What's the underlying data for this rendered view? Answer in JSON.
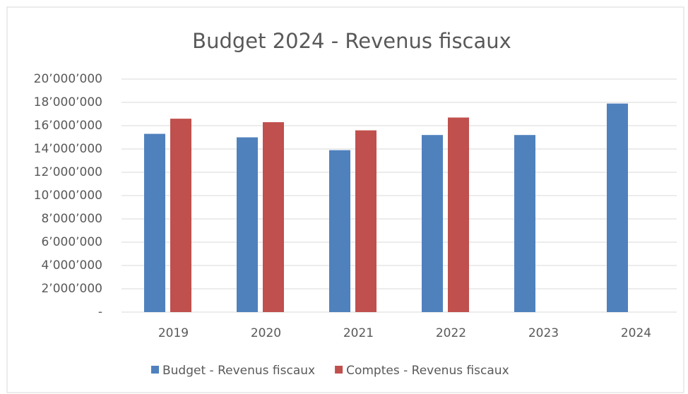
{
  "chart_data": {
    "type": "bar",
    "title": "Budget 2024 - Revenus fiscaux",
    "categories": [
      "2019",
      "2020",
      "2021",
      "2022",
      "2023",
      "2024"
    ],
    "series": [
      {
        "name": "Budget - Revenus fiscaux",
        "color": "#4f81bd",
        "values": [
          15300000,
          15000000,
          13900000,
          15200000,
          15200000,
          17900000
        ]
      },
      {
        "name": "Comptes - Revenus fiscaux",
        "color": "#c0504d",
        "values": [
          16600000,
          16300000,
          15600000,
          16700000,
          null,
          null
        ]
      }
    ],
    "ylim": [
      0,
      20000000
    ],
    "yticks": [
      {
        "value": 0,
        "label": "-"
      },
      {
        "value": 2000000,
        "label": "2’000’000"
      },
      {
        "value": 4000000,
        "label": "4’000’000"
      },
      {
        "value": 6000000,
        "label": "6’000’000"
      },
      {
        "value": 8000000,
        "label": "8’000’000"
      },
      {
        "value": 10000000,
        "label": "10’000’000"
      },
      {
        "value": 12000000,
        "label": "12’000’000"
      },
      {
        "value": 14000000,
        "label": "14’000’000"
      },
      {
        "value": 16000000,
        "label": "16’000’000"
      },
      {
        "value": 18000000,
        "label": "18’000’000"
      },
      {
        "value": 20000000,
        "label": "20’000’000"
      }
    ],
    "grid": true,
    "legend": "bottom"
  }
}
